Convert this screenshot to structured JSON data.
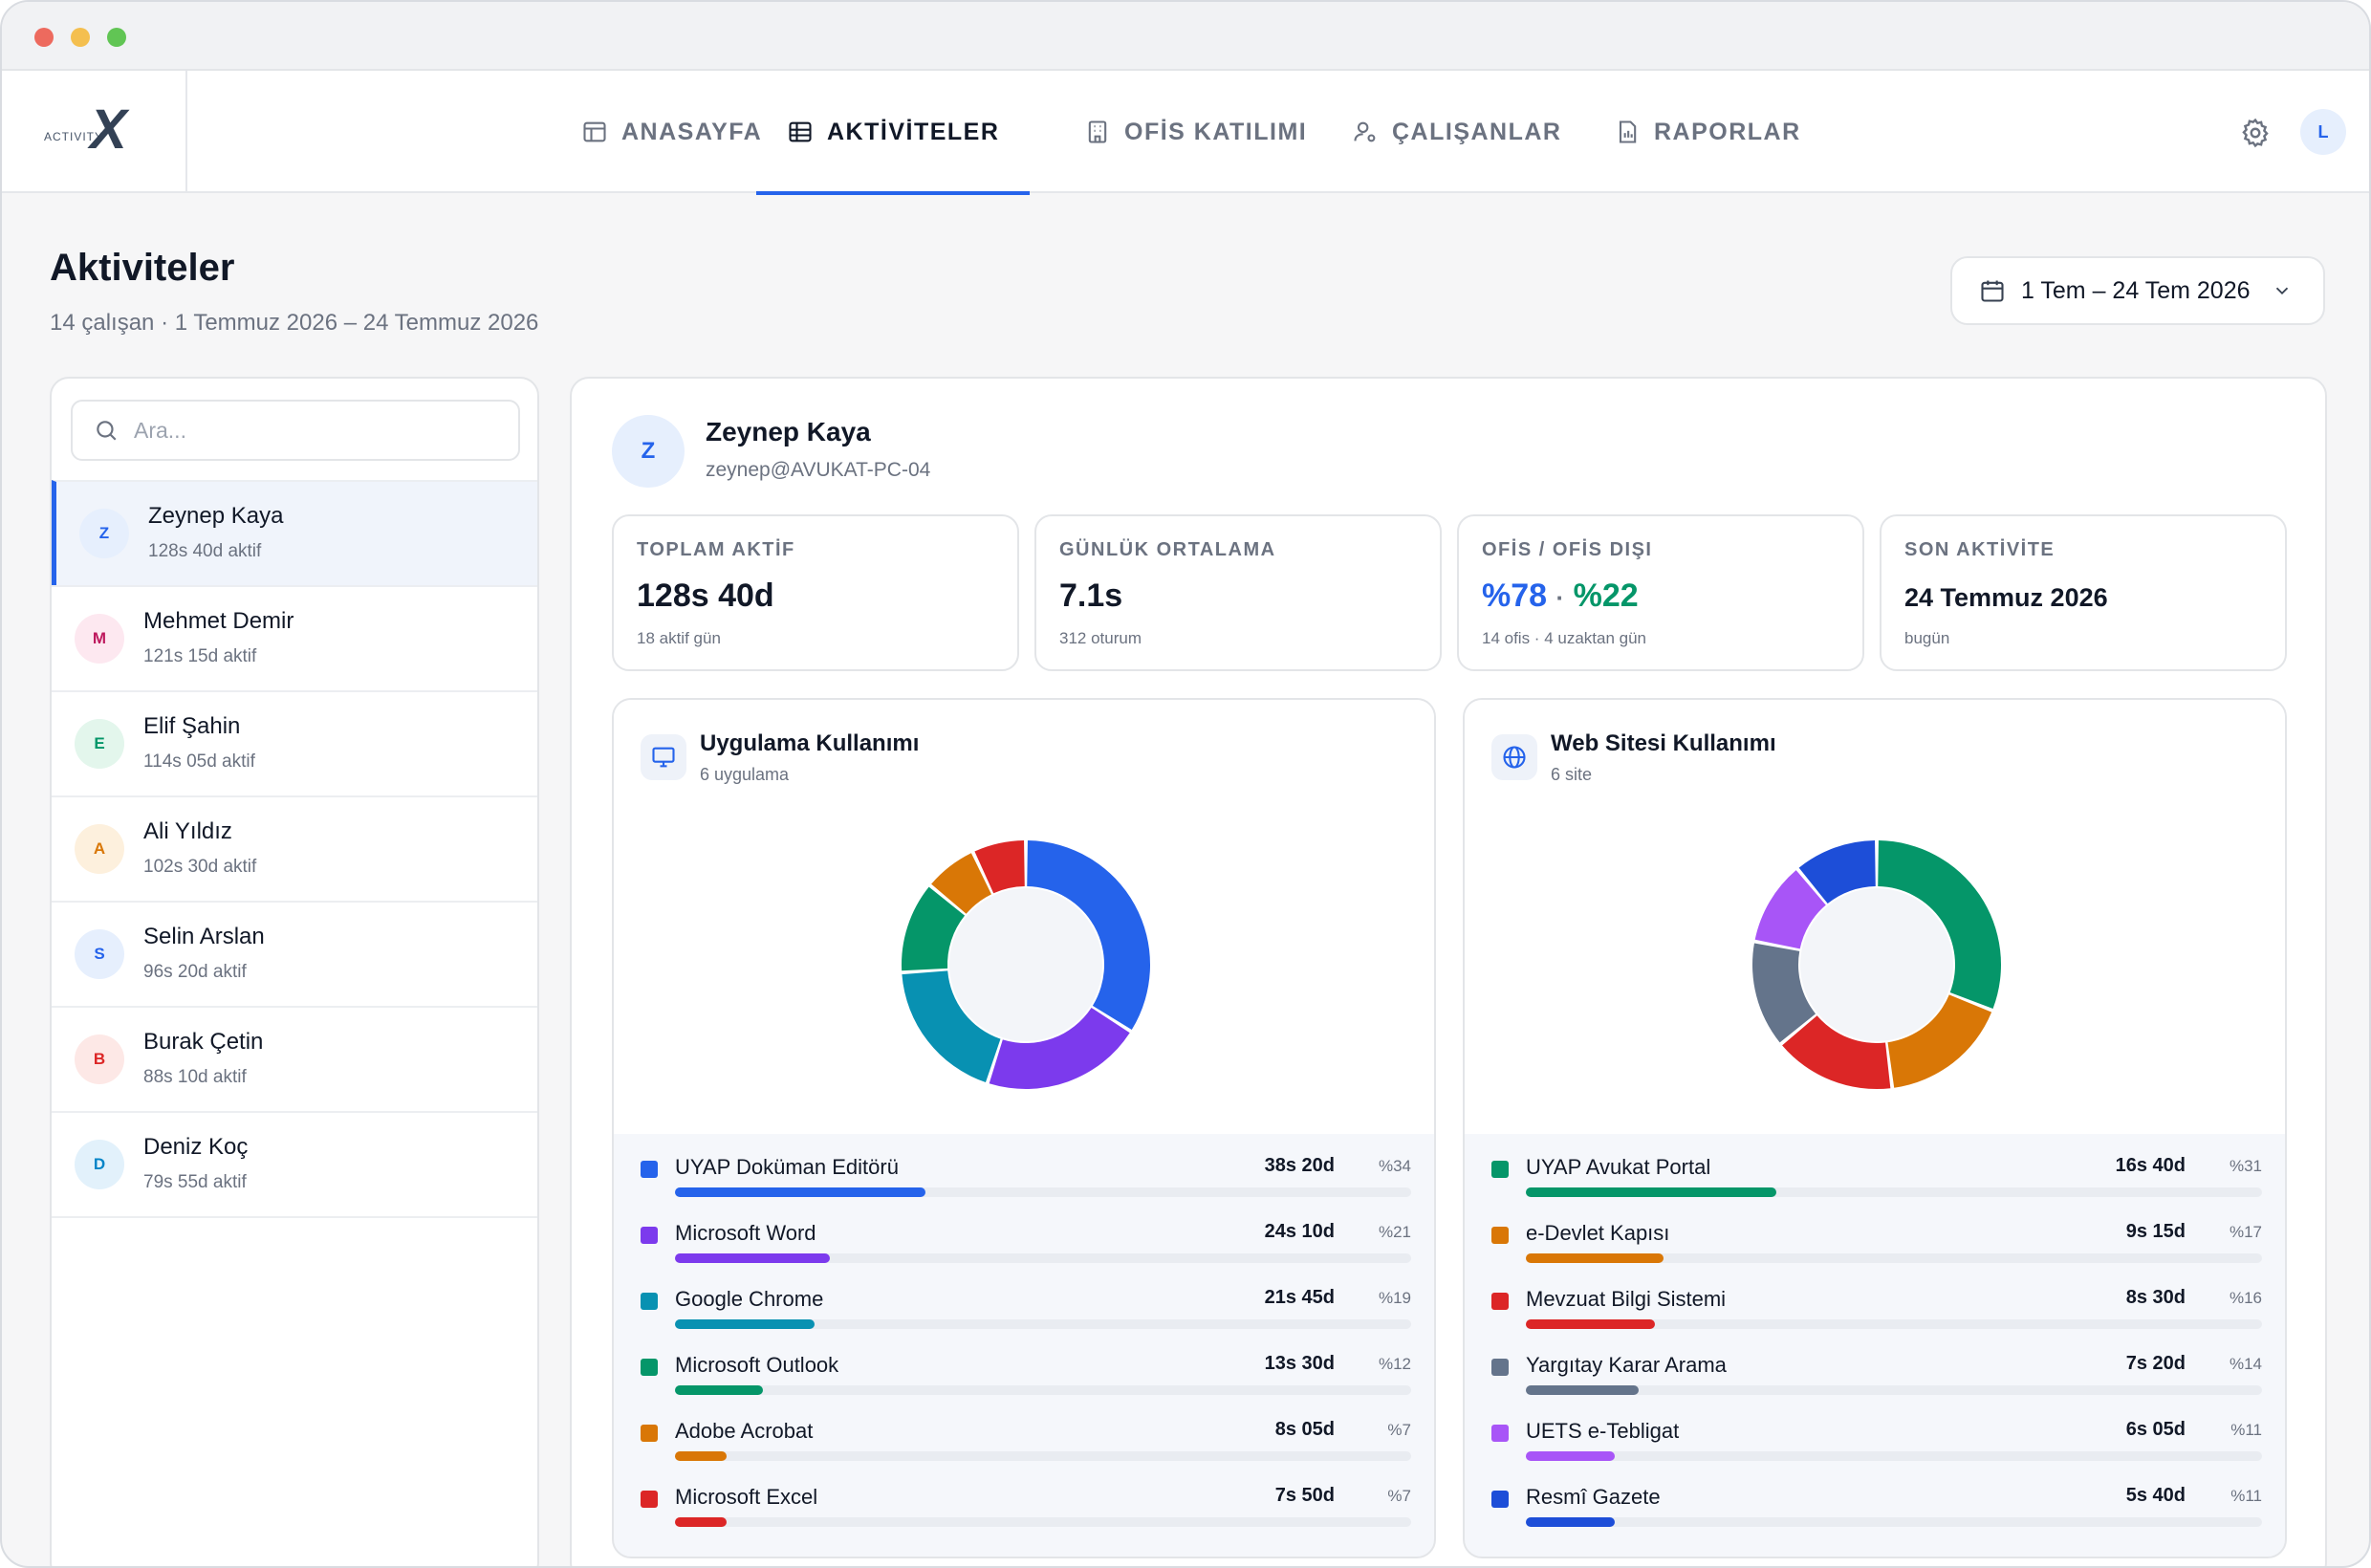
{
  "nav": {
    "logo": {
      "text": "ACTIVITY",
      "mark": "X"
    },
    "tabs": [
      {
        "label": "ANASAYFA",
        "icon": "layout-icon"
      },
      {
        "label": "AKTİVİTELER",
        "icon": "table-icon",
        "active": true
      },
      {
        "label": "OFİS KATILIMI",
        "icon": "building-icon"
      },
      {
        "label": "ÇALIŞANLAR",
        "icon": "user-gear-icon"
      },
      {
        "label": "RAPORLAR",
        "icon": "report-icon"
      }
    ],
    "user_initial": "L"
  },
  "page": {
    "title": "Aktiviteler",
    "subtitle": "14 çalışan · 1 Temmuz 2026 – 24 Temmuz 2026",
    "date_range": "1 Tem – 24 Tem 2026"
  },
  "sidebar": {
    "search_placeholder": "Ara...",
    "employees": [
      {
        "initial": "Z",
        "name": "Zeynep Kaya",
        "active": "128s 40d aktif",
        "bg": "#e6effd",
        "fg": "#2563eb",
        "selected": true
      },
      {
        "initial": "M",
        "name": "Mehmet Demir",
        "active": "121s 15d aktif",
        "bg": "#fde8f0",
        "fg": "#be185d"
      },
      {
        "initial": "E",
        "name": "Elif Şahin",
        "active": "114s 05d aktif",
        "bg": "#e3f6ec",
        "fg": "#059669"
      },
      {
        "initial": "A",
        "name": "Ali Yıldız",
        "active": "102s 30d aktif",
        "bg": "#fdf0dd",
        "fg": "#d97706"
      },
      {
        "initial": "S",
        "name": "Selin Arslan",
        "active": "96s 20d aktif",
        "bg": "#e6effd",
        "fg": "#2563eb"
      },
      {
        "initial": "B",
        "name": "Burak Çetin",
        "active": "88s 10d aktif",
        "bg": "#fde8e6",
        "fg": "#dc2626"
      },
      {
        "initial": "D",
        "name": "Deniz Koç",
        "active": "79s 55d aktif",
        "bg": "#e2f1fb",
        "fg": "#0284c7"
      }
    ]
  },
  "profile": {
    "initial": "Z",
    "name": "Zeynep Kaya",
    "account": "zeynep@AVUKAT-PC-04"
  },
  "stats": [
    {
      "label": "TOPLAM AKTİF",
      "value": "128s 40d",
      "sub": "18 aktif gün"
    },
    {
      "label": "GÜNLÜK ORTALAMA",
      "value": "7.1s",
      "sub": "312 oturum"
    },
    {
      "label": "OFİS / OFİS DIŞI",
      "value_office": "%78",
      "value_sep": "·",
      "value_remote": "%22",
      "sub": "14 ofis · 4 uzaktan gün"
    },
    {
      "label": "SON AKTİVİTE",
      "value": "24 Temmuz 2026",
      "sub": "bugün"
    }
  ],
  "apps": {
    "title": "Uygulama Kullanımı",
    "subtitle": "6 uygulama",
    "items": [
      {
        "name": "UYAP Doküman Editörü",
        "time": "38s 20d",
        "pct_label": "%34",
        "pct": 34,
        "color": "#2563eb"
      },
      {
        "name": "Microsoft Word",
        "time": "24s 10d",
        "pct_label": "%21",
        "pct": 21,
        "color": "#7c3aed"
      },
      {
        "name": "Google Chrome",
        "time": "21s 45d",
        "pct_label": "%19",
        "pct": 19,
        "color": "#0891b2"
      },
      {
        "name": "Microsoft Outlook",
        "time": "13s 30d",
        "pct_label": "%12",
        "pct": 12,
        "color": "#059669"
      },
      {
        "name": "Adobe Acrobat",
        "time": "8s 05d",
        "pct_label": "%7",
        "pct": 7,
        "color": "#d97706"
      },
      {
        "name": "Microsoft Excel",
        "time": "7s 50d",
        "pct_label": "%7",
        "pct": 7,
        "color": "#dc2626"
      }
    ]
  },
  "sites": {
    "title": "Web Sitesi Kullanımı",
    "subtitle": "6 site",
    "items": [
      {
        "name": "UYAP Avukat Portal",
        "time": "16s 40d",
        "pct_label": "%31",
        "pct": 31,
        "color": "#059669"
      },
      {
        "name": "e-Devlet Kapısı",
        "time": "9s 15d",
        "pct_label": "%17",
        "pct": 17,
        "color": "#d97706"
      },
      {
        "name": "Mevzuat Bilgi Sistemi",
        "time": "8s 30d",
        "pct_label": "%16",
        "pct": 16,
        "color": "#dc2626"
      },
      {
        "name": "Yargıtay Karar Arama",
        "time": "7s 20d",
        "pct_label": "%14",
        "pct": 14,
        "color": "#64748b"
      },
      {
        "name": "UETS e-Tebligat",
        "time": "6s 05d",
        "pct_label": "%11",
        "pct": 11,
        "color": "#a855f7"
      },
      {
        "name": "Resmî Gazete",
        "time": "5s 40d",
        "pct_label": "%11",
        "pct": 11,
        "color": "#1d4ed8"
      }
    ]
  }
}
